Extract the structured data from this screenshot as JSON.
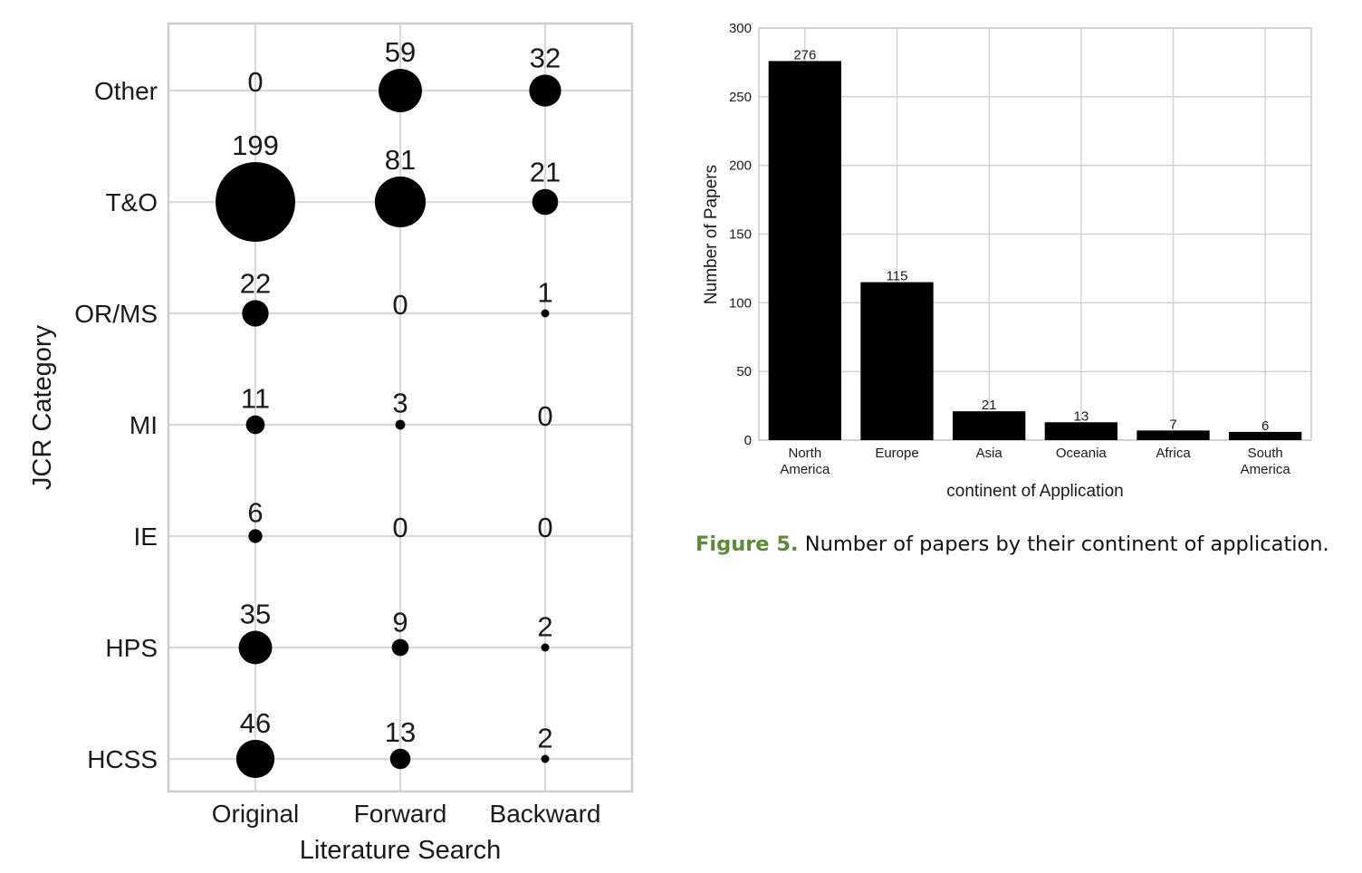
{
  "chart_data": [
    {
      "type": "scatter",
      "subtype": "bubble",
      "title": "",
      "xlabel": "Literature Search",
      "ylabel": "JCR Category",
      "x_categories": [
        "Original",
        "Forward",
        "Backward"
      ],
      "y_categories": [
        "Other",
        "T&O",
        "OR/MS",
        "MI",
        "IE",
        "HPS",
        "HCSS"
      ],
      "values": [
        [
          0,
          59,
          32
        ],
        [
          199,
          81,
          21
        ],
        [
          22,
          0,
          1
        ],
        [
          11,
          3,
          0
        ],
        [
          6,
          0,
          0
        ],
        [
          35,
          9,
          2
        ],
        [
          46,
          13,
          2
        ]
      ],
      "grid": true,
      "marker_color": "#000000"
    },
    {
      "type": "bar",
      "title": "",
      "categories": [
        "North America",
        "Europe",
        "Asia",
        "Oceania",
        "Africa",
        "South America"
      ],
      "category_lines": [
        [
          "North",
          "America"
        ],
        [
          "Europe"
        ],
        [
          "Asia"
        ],
        [
          "Oceania"
        ],
        [
          "Africa"
        ],
        [
          "South",
          "America"
        ]
      ],
      "values": [
        276,
        115,
        21,
        13,
        7,
        6
      ],
      "xlabel": "continent of Application",
      "ylabel": "Number of Papers",
      "ylim": [
        0,
        300
      ],
      "yticks": [
        0,
        50,
        100,
        150,
        200,
        250,
        300
      ],
      "grid": true,
      "bar_color": "#000000"
    }
  ],
  "caption": {
    "prefix": "Figure 5.",
    "text": " Number of papers by their continent of application."
  }
}
